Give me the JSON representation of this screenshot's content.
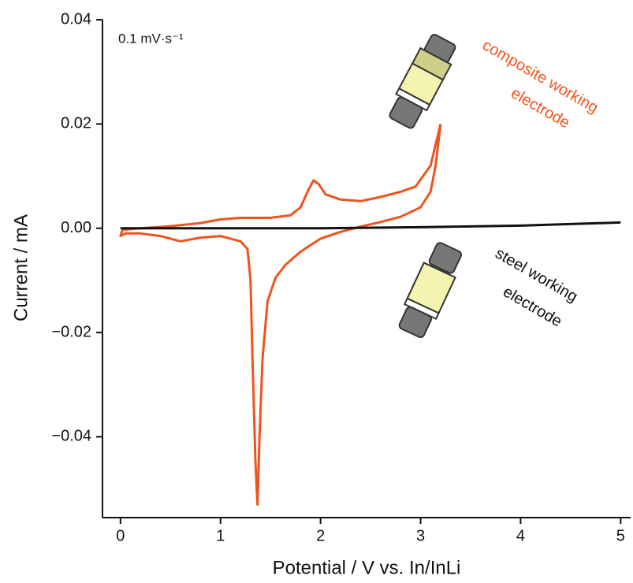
{
  "chart_data": {
    "type": "line",
    "x_label": "Potential / V vs. In/InLi",
    "y_label": "Current / mA",
    "annotations": [
      "0.1 mV·s⁻¹",
      "composite working",
      "electrode",
      "steel working",
      "electrode"
    ],
    "xlim": [
      -0.18,
      5.1
    ],
    "xticks": [
      0,
      1,
      2,
      3,
      4,
      5
    ],
    "ylim": [
      -0.0555,
      0.04
    ],
    "yticks": [
      0.04,
      0.02,
      {
        "value": 0,
        "label": "0.00"
      },
      {
        "value": -0.02,
        "label": "−0.02"
      },
      {
        "value": -0.04,
        "label": "−0.04"
      }
    ],
    "series": [
      {
        "color": "#f0541e",
        "x": [
          3.2,
          3.15,
          3.1,
          3.0,
          2.8,
          2.6,
          2.4,
          2.2,
          2.0,
          1.8,
          1.65,
          1.55,
          1.47,
          1.42,
          1.39,
          1.37,
          1.35,
          1.32,
          1.3,
          1.27,
          1.2,
          1.0,
          0.8,
          0.6,
          0.4,
          0.2,
          0.05,
          0.0,
          0.02,
          0.2,
          0.5,
          0.8,
          1.0,
          1.2,
          1.5,
          1.7,
          1.8,
          1.87,
          1.93,
          1.98,
          2.05,
          2.2,
          2.4,
          2.6,
          2.8,
          2.95,
          3.1,
          3.2
        ],
        "values": [
          0.02,
          0.012,
          0.007,
          0.004,
          0.0022,
          0.0012,
          0.0003,
          -0.0007,
          -0.002,
          -0.0045,
          -0.007,
          -0.0095,
          -0.014,
          -0.025,
          -0.04,
          -0.053,
          -0.045,
          -0.025,
          -0.01,
          -0.004,
          -0.0025,
          -0.0015,
          -0.0018,
          -0.0025,
          -0.0015,
          -0.001,
          -0.001,
          -0.0015,
          -0.0003,
          0.0,
          0.0004,
          0.001,
          0.0017,
          0.002,
          0.002,
          0.0025,
          0.004,
          0.007,
          0.0092,
          0.0085,
          0.0065,
          0.0055,
          0.0052,
          0.006,
          0.007,
          0.008,
          0.012,
          0.02
        ]
      },
      {
        "color": "#111111",
        "x": [
          0,
          1,
          2,
          3,
          4,
          5
        ],
        "values": [
          0,
          0,
          0,
          0.0002,
          0.0005,
          0.0011
        ]
      }
    ]
  }
}
